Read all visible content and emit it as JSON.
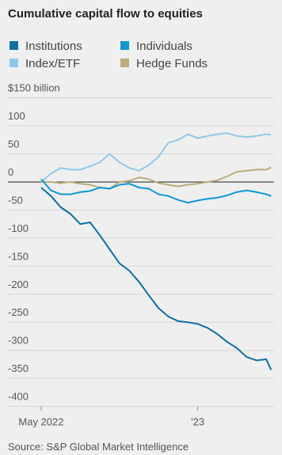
{
  "chart_data": {
    "type": "line",
    "title": "Cumulative capital flow to equities",
    "source": "Source: S&P Global Market Intelligence",
    "x": [
      0,
      0.5,
      1,
      1.5,
      2,
      2.5,
      3,
      3.5,
      4,
      4.5,
      5,
      5.5,
      6,
      6.5,
      7,
      7.5,
      8,
      8.5,
      9,
      9.5,
      10,
      10.5,
      11,
      11.5,
      11.75
    ],
    "xlim": [
      -0.2,
      11.9
    ],
    "xticks": [
      {
        "value": 0,
        "label": "May 2022"
      },
      {
        "value": 8,
        "label": "'23"
      }
    ],
    "ylim": [
      -400,
      150
    ],
    "yticks": [
      {
        "value": 150,
        "label": "$150 billion"
      },
      100,
      50,
      0,
      -50,
      -100,
      -150,
      -200,
      -250,
      -300,
      -350,
      -400
    ],
    "grid": true,
    "series": [
      {
        "name": "Institutions",
        "color": "#0f6fa3",
        "values": [
          -10,
          -25,
          -45,
          -57,
          -75,
          -72,
          -95,
          -120,
          -145,
          -158,
          -178,
          -202,
          -225,
          -240,
          -248,
          -250,
          -253,
          -260,
          -271,
          -285,
          -296,
          -312,
          -318,
          -316,
          -335
        ]
      },
      {
        "name": "Individuals",
        "color": "#0a98d6",
        "values": [
          5,
          -15,
          -22,
          -22,
          -18,
          -16,
          -10,
          -12,
          -5,
          -3,
          -10,
          -12,
          -22,
          -25,
          -32,
          -37,
          -33,
          -30,
          -28,
          -24,
          -18,
          -15,
          -18,
          -22,
          -25
        ]
      },
      {
        "name": "Index/ETF",
        "color": "#8fc7ea",
        "values": [
          0,
          15,
          25,
          22,
          22,
          28,
          35,
          50,
          35,
          25,
          20,
          30,
          45,
          70,
          75,
          85,
          78,
          82,
          85,
          87,
          82,
          80,
          82,
          85,
          84
        ]
      },
      {
        "name": "Hedge Funds",
        "color": "#bbad7a",
        "values": [
          0,
          0,
          -2,
          0,
          -3,
          -5,
          -10,
          -12,
          0,
          2,
          8,
          5,
          -2,
          -5,
          -8,
          -5,
          -3,
          0,
          3,
          10,
          18,
          20,
          22,
          22,
          26
        ]
      }
    ]
  }
}
